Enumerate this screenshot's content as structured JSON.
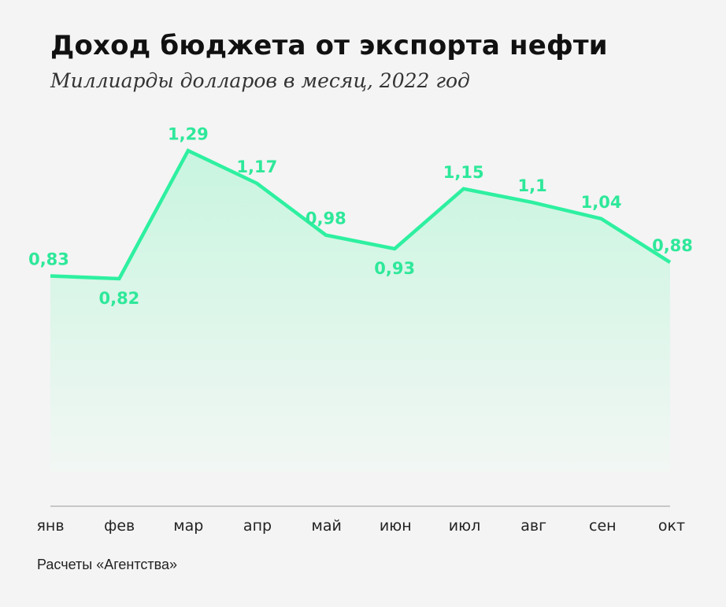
{
  "header": {
    "title": "Доход бюджета от экспорта нефти",
    "subtitle": "Миллиарды долларов в месяц, 2022 год"
  },
  "footer": {
    "source": "Расчеты «Агентства»"
  },
  "colors": {
    "line": "#2ef0a0",
    "label": "#2ee89a",
    "fill_top": "#c8f5df",
    "fill_bottom": "#f2f7f4",
    "axis": "#9a9a9a",
    "background": "#f4f4f4"
  },
  "chart_data": {
    "type": "area",
    "categories": [
      "янв",
      "фев",
      "мар",
      "апр",
      "май",
      "июн",
      "июл",
      "авг",
      "сен",
      "окт"
    ],
    "values": [
      0.83,
      0.82,
      1.29,
      1.17,
      0.98,
      0.93,
      1.15,
      1.1,
      1.04,
      0.88
    ],
    "value_labels": [
      "0,83",
      "0,82",
      "1,29",
      "1,17",
      "0,98",
      "0,93",
      "1,15",
      "1,1",
      "1,04",
      "0,88"
    ],
    "title": "Доход бюджета от экспорта нефти",
    "subtitle": "Миллиарды долларов в месяц, 2022 год",
    "ylim": [
      0,
      1.29
    ],
    "grid": false,
    "legend": "none"
  }
}
